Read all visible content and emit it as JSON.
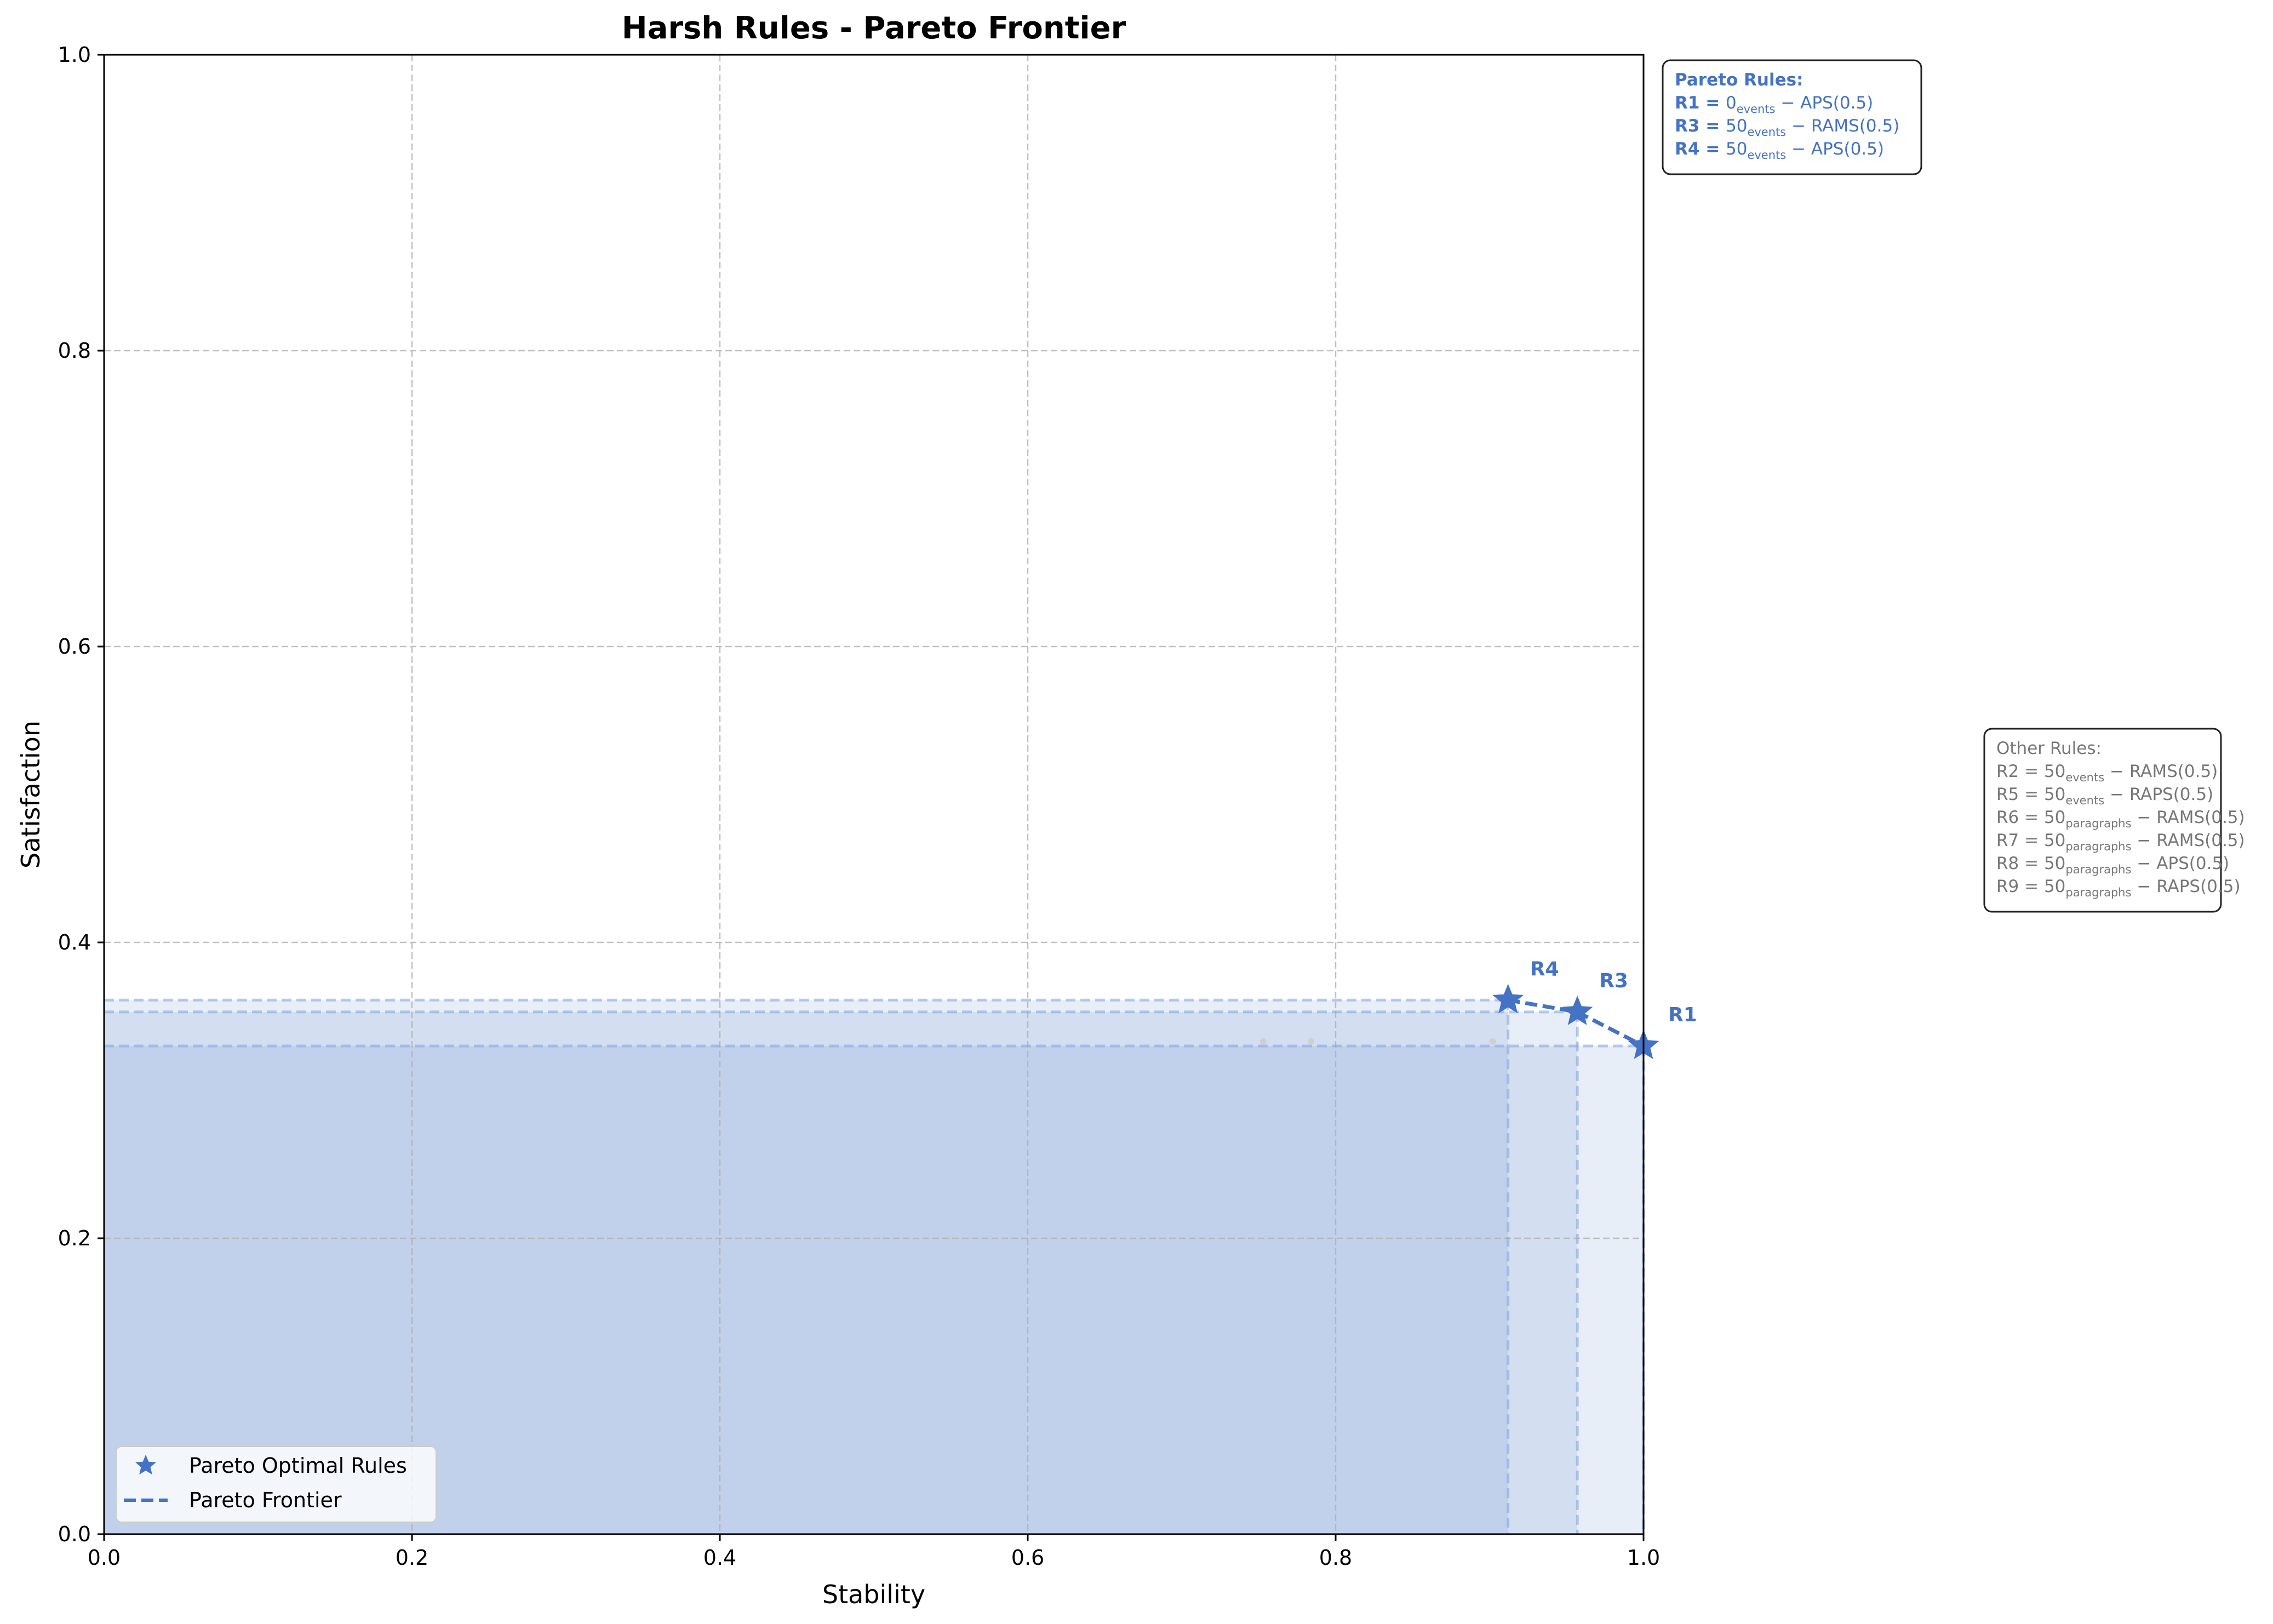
{
  "chart_data": {
    "type": "scatter",
    "title": "Harsh Rules - Pareto Frontier",
    "xlabel": "Stability",
    "ylabel": "Satisfaction",
    "xlim": [
      0,
      1
    ],
    "ylim": [
      0,
      1
    ],
    "x_ticks": [
      "0.0",
      "0.2",
      "0.4",
      "0.6",
      "0.8",
      "1.0"
    ],
    "y_ticks": [
      "0.0",
      "0.2",
      "0.4",
      "0.6",
      "0.8",
      "1.0"
    ],
    "grid": true,
    "legend_position": "lower-left",
    "series": [
      {
        "name": "Pareto Optimal Rules",
        "marker": "star",
        "color": "#4472c4",
        "points": [
          {
            "label": "R1",
            "x": 1.0,
            "y": 0.33
          },
          {
            "label": "R3",
            "x": 0.957,
            "y": 0.353
          },
          {
            "label": "R4",
            "x": 0.912,
            "y": 0.361
          }
        ]
      },
      {
        "name": "Pareto Frontier",
        "line_style": "dashed",
        "color": "#4472c4",
        "points": [
          {
            "x": 0.912,
            "y": 0.361
          },
          {
            "x": 0.957,
            "y": 0.353
          },
          {
            "x": 1.0,
            "y": 0.33
          }
        ]
      },
      {
        "marker": "small-dot",
        "color": "#cccccc",
        "points": [
          {
            "x": 0.753,
            "y": 0.333
          },
          {
            "x": 0.784,
            "y": 0.333
          },
          {
            "x": 0.902,
            "y": 0.333
          }
        ]
      }
    ],
    "annotations": {
      "pareto_box": {
        "title": "Pareto Rules:",
        "lines": [
          {
            "name": "R1 =",
            "num": "0",
            "sub": "events",
            "rest": "− APS(0.5)"
          },
          {
            "name": "R3 =",
            "num": "50",
            "sub": "events",
            "rest": "− RAMS(0.5)"
          },
          {
            "name": "R4 =",
            "num": "50",
            "sub": "events",
            "rest": "− APS(0.5)"
          }
        ]
      },
      "other_box": {
        "title": "Other Rules:",
        "lines": [
          {
            "name": "R2 =",
            "num": "50",
            "sub": "events",
            "rest": "− RAMS(0.5)"
          },
          {
            "name": "R5 =",
            "num": "50",
            "sub": "events",
            "rest": "− RAPS(0.5)"
          },
          {
            "name": "R6 =",
            "num": "50",
            "sub": "paragraphs",
            "rest": "− RAMS(0.5)"
          },
          {
            "name": "R7 =",
            "num": "50",
            "sub": "paragraphs",
            "rest": "− RAMS(0.5)"
          },
          {
            "name": "R8 =",
            "num": "50",
            "sub": "paragraphs",
            "rest": "− APS(0.5)"
          },
          {
            "name": "R9 =",
            "num": "50",
            "sub": "paragraphs",
            "rest": "− RAPS(0.5)"
          }
        ]
      }
    },
    "colors": {
      "pareto": "#4472c4",
      "region": "#4472c4",
      "other": "#777777",
      "grid": "#b0b0b0"
    }
  }
}
